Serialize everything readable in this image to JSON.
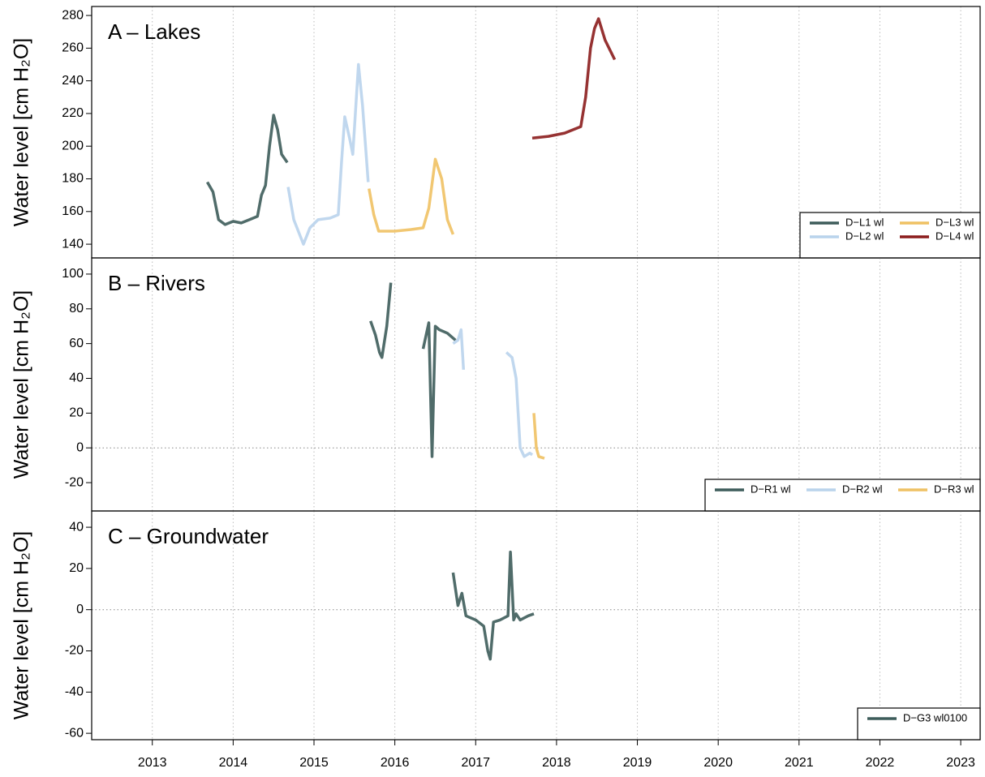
{
  "chart_data": [
    {
      "type": "line",
      "annotation": "A – Lakes",
      "ylabel": "Water level [cm H₂O]",
      "xlim": [
        2012.25,
        2023.24
      ],
      "ylim": [
        131.6,
        285.5
      ],
      "yticks": [
        140,
        160,
        180,
        200,
        220,
        240,
        260,
        280
      ],
      "grid": true,
      "legend": "lower right",
      "series": [
        {
          "name": "D−L1 wl",
          "color": "#3d5c5a",
          "x": [
            2013.68,
            2013.75,
            2013.82,
            2013.9,
            2014.0,
            2014.1,
            2014.2,
            2014.3,
            2014.35,
            2014.4,
            2014.45,
            2014.5,
            2014.55,
            2014.6,
            2014.67
          ],
          "values": [
            178,
            172,
            155,
            152,
            154,
            153,
            155,
            157,
            170,
            176,
            200,
            219,
            210,
            195,
            190
          ]
        },
        {
          "name": "D−L2 wl",
          "color": "#b9d3ec",
          "x": [
            2014.68,
            2014.75,
            2014.87,
            2014.95,
            2015.05,
            2015.2,
            2015.3,
            2015.34,
            2015.38,
            2015.44,
            2015.48,
            2015.55,
            2015.6,
            2015.67
          ],
          "values": [
            175,
            155,
            140,
            150,
            155,
            156,
            158,
            190,
            218,
            205,
            195,
            250,
            225,
            178
          ]
        },
        {
          "name": "D−L3 wl",
          "color": "#efc163",
          "x": [
            2015.68,
            2015.74,
            2015.8,
            2016.0,
            2016.2,
            2016.35,
            2016.42,
            2016.5,
            2016.58,
            2016.65,
            2016.72
          ],
          "values": [
            174,
            158,
            148,
            148,
            149,
            150,
            162,
            192,
            180,
            155,
            146
          ]
        },
        {
          "name": "D−L4 wl",
          "color": "#8b1c1c",
          "x": [
            2017.7,
            2017.9,
            2018.1,
            2018.3,
            2018.36,
            2018.42,
            2018.47,
            2018.52,
            2018.6,
            2018.72
          ],
          "values": [
            205,
            206,
            208,
            212,
            230,
            260,
            272,
            278,
            265,
            253
          ]
        }
      ]
    },
    {
      "type": "line",
      "annotation": "B – Rivers",
      "ylabel": "Water level [cm H₂O]",
      "xlim": [
        2012.25,
        2023.24
      ],
      "ylim": [
        -36.3,
        109.3
      ],
      "yticks": [
        -20,
        0,
        20,
        40,
        60,
        80,
        100
      ],
      "grid": true,
      "zero_line": true,
      "legend": "lower right",
      "series": [
        {
          "name": "D−R1 wl",
          "color": "#3d5c5a",
          "x": [
            2015.7,
            2015.76,
            2015.81,
            2015.84,
            2015.9,
            2015.95,
            2016.0,
            2016.35,
            2016.42,
            2016.46,
            2016.5,
            2016.55,
            2016.65,
            2016.75
          ],
          "values": [
            73,
            65,
            55,
            52,
            70,
            95,
            null,
            57,
            72,
            -5,
            70,
            68,
            66,
            62
          ]
        },
        {
          "name": "D−R2 wl",
          "color": "#b9d3ec",
          "x": [
            2016.72,
            2016.78,
            2016.82,
            2016.85,
            2017.0,
            2017.38,
            2017.45,
            2017.5,
            2017.55,
            2017.6,
            2017.67,
            2017.7
          ],
          "values": [
            60,
            62,
            68,
            45,
            null,
            55,
            52,
            40,
            0,
            -5,
            -3,
            -4
          ]
        },
        {
          "name": "D−R3 wl",
          "color": "#efc163",
          "x": [
            2017.72,
            2017.75,
            2017.78,
            2017.85
          ],
          "values": [
            20,
            0,
            -5,
            -6
          ]
        }
      ]
    },
    {
      "type": "line",
      "annotation": "C – Groundwater",
      "ylabel": "Water level [cm H₂O]",
      "xlim": [
        2012.25,
        2023.24
      ],
      "ylim": [
        -63.1,
        47.9
      ],
      "xticks": [
        2013,
        2014,
        2015,
        2016,
        2017,
        2018,
        2019,
        2020,
        2021,
        2022,
        2023
      ],
      "yticks": [
        -60,
        -40,
        -20,
        0,
        20,
        40
      ],
      "grid": true,
      "zero_line": true,
      "legend": "lower right",
      "series": [
        {
          "name": "D−G3 wl0100",
          "color": "#3d5c5a",
          "x": [
            2016.72,
            2016.78,
            2016.83,
            2016.88,
            2017.0,
            2017.1,
            2017.15,
            2017.18,
            2017.22,
            2017.3,
            2017.4,
            2017.43,
            2017.47,
            2017.5,
            2017.55,
            2017.65,
            2017.72
          ],
          "values": [
            18,
            2,
            8,
            -3,
            -5,
            -8,
            -20,
            -24,
            -6,
            -5,
            -3,
            28,
            -5,
            -2,
            -5,
            -3,
            -2
          ]
        }
      ]
    }
  ]
}
